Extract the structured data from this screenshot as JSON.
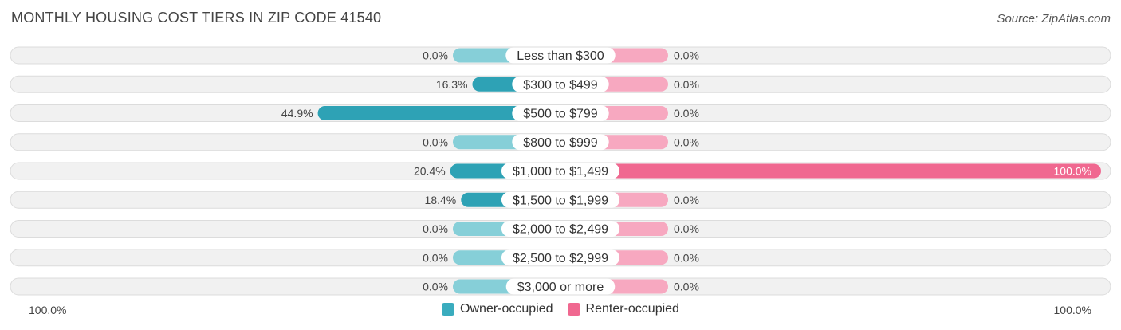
{
  "title": "MONTHLY HOUSING COST TIERS IN ZIP CODE 41540",
  "source": "Source: ZipAtlas.com",
  "axis": {
    "left_label": "100.0%",
    "right_label": "100.0%"
  },
  "legend": [
    {
      "label": "Owner-occupied",
      "color": "#3aacbe"
    },
    {
      "label": "Renter-occupied",
      "color": "#f06890"
    }
  ],
  "colors": {
    "owner_full": "#2ea2b5",
    "owner_light": "#86cfd8",
    "renter_full": "#f06890",
    "renter_light": "#f7a8c0"
  },
  "chart_data": {
    "type": "bar",
    "orientation": "horizontal-diverging",
    "categories": [
      "Less than $300",
      "$300 to $499",
      "$500 to $799",
      "$800 to $999",
      "$1,000 to $1,499",
      "$1,500 to $1,999",
      "$2,000 to $2,499",
      "$2,500 to $2,999",
      "$3,000 or more"
    ],
    "series": [
      {
        "name": "Owner-occupied",
        "values": [
          0.0,
          16.3,
          44.9,
          0.0,
          20.4,
          18.4,
          0.0,
          0.0,
          0.0
        ]
      },
      {
        "name": "Renter-occupied",
        "values": [
          0.0,
          0.0,
          0.0,
          0.0,
          100.0,
          0.0,
          0.0,
          0.0,
          0.0
        ]
      }
    ],
    "value_labels": {
      "owner": [
        "0.0%",
        "16.3%",
        "44.9%",
        "0.0%",
        "20.4%",
        "18.4%",
        "0.0%",
        "0.0%",
        "0.0%"
      ],
      "renter": [
        "0.0%",
        "0.0%",
        "0.0%",
        "0.0%",
        "100.0%",
        "0.0%",
        "0.0%",
        "0.0%",
        "0.0%"
      ]
    },
    "xlim": [
      -100,
      100
    ],
    "legend_position": "bottom-center"
  }
}
